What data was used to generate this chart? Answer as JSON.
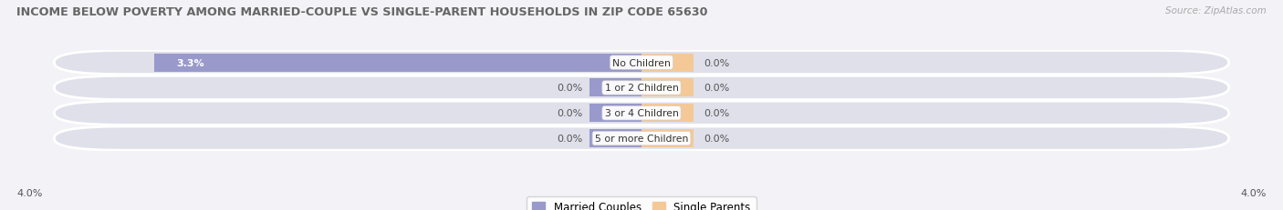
{
  "title": "INCOME BELOW POVERTY AMONG MARRIED-COUPLE VS SINGLE-PARENT HOUSEHOLDS IN ZIP CODE 65630",
  "source": "Source: ZipAtlas.com",
  "categories": [
    "No Children",
    "1 or 2 Children",
    "3 or 4 Children",
    "5 or more Children"
  ],
  "married_values": [
    3.3,
    0.0,
    0.0,
    0.0
  ],
  "single_values": [
    0.0,
    0.0,
    0.0,
    0.0
  ],
  "axis_max": 4.0,
  "stub_size": 0.35,
  "married_color": "#9999cc",
  "single_color": "#f5c897",
  "row_bg_even": "#e8e8f0",
  "row_bg_odd": "#ebebf2",
  "fig_bg": "#f2f2f7",
  "label_color": "#555555",
  "title_color": "#666666",
  "source_color": "#aaaaaa",
  "legend_married": "Married Couples",
  "legend_single": "Single Parents",
  "axis_label": "4.0%"
}
